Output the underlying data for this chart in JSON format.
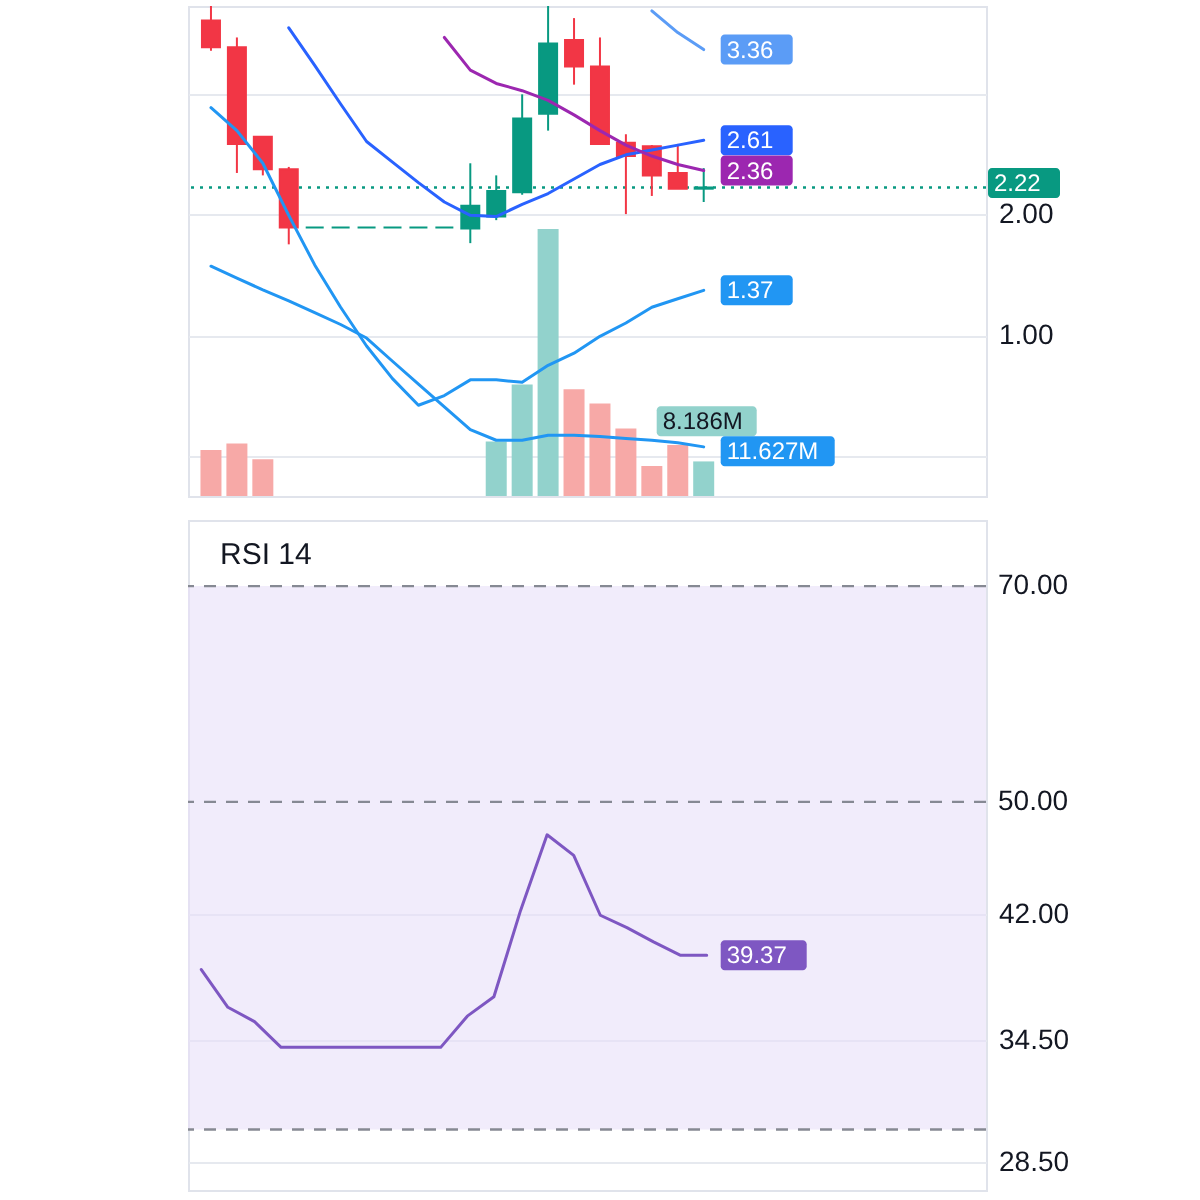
{
  "chart_data": [
    {
      "type": "candlestick",
      "categories": [
        null,
        null,
        null,
        null,
        null,
        null,
        null,
        null,
        null,
        null,
        null,
        null,
        null,
        null,
        null,
        null,
        null,
        null,
        null,
        null,
        null,
        null,
        null,
        null,
        null,
        null,
        null,
        null,
        null,
        null
      ],
      "ohlc": [
        [
          3.6,
          3.72,
          3.35,
          3.38
        ],
        [
          3.38,
          3.46,
          2.34,
          2.58
        ],
        [
          2.64,
          2.64,
          2.32,
          2.37
        ],
        [
          2.37,
          2.39,
          1.75,
          1.89
        ],
        [
          1.89,
          1.89,
          1.89,
          1.89
        ],
        [
          1.89,
          1.89,
          1.89,
          1.89
        ],
        [
          1.89,
          1.89,
          1.89,
          1.89
        ],
        [
          1.89,
          1.89,
          1.89,
          1.89
        ],
        [
          1.89,
          1.89,
          1.89,
          1.89
        ],
        [
          1.89,
          1.89,
          1.89,
          1.89
        ],
        [
          1.88,
          2.42,
          1.76,
          2.07
        ],
        [
          1.98,
          2.32,
          1.95,
          2.19
        ],
        [
          2.18,
          2.99,
          2.16,
          2.79
        ],
        [
          2.83,
          3.72,
          2.69,
          3.41
        ],
        [
          3.44,
          3.62,
          3.07,
          3.22
        ],
        [
          3.22,
          3.46,
          2.58,
          2.58
        ],
        [
          2.59,
          2.66,
          2.0,
          2.48
        ],
        [
          2.56,
          2.57,
          2.15,
          2.32
        ],
        [
          2.34,
          2.58,
          2.21,
          2.21
        ],
        [
          2.21,
          2.38,
          2.1,
          2.22
        ],
        null,
        null,
        null,
        null,
        null,
        null,
        null,
        null,
        null,
        null
      ],
      "colors": [
        "#f23645",
        "#f23645",
        "#f23645",
        "#f23645",
        "#089981",
        "#089981",
        "#089981",
        "#089981",
        "#089981",
        "#089981",
        "#089981",
        "#089981",
        "#089981",
        "#089981",
        "#f23645",
        "#f23645",
        "#f23645",
        "#f23645",
        "#f23645",
        "#089981",
        null,
        null,
        null,
        null,
        null,
        null,
        null,
        null,
        null,
        null
      ],
      "series": [
        {
          "type": "bar",
          "axis": "y2",
          "values": [
            10.9,
            12.4,
            8.7,
            null,
            null,
            null,
            null,
            null,
            null,
            null,
            null,
            12.9,
            26.4,
            63.2,
            25.3,
            21.9,
            16.0,
            7.1,
            12.1,
            8.186,
            null,
            null,
            null,
            null,
            null,
            null,
            null,
            null,
            null,
            null
          ],
          "colors": [
            "#f7a9a7",
            "#f7a9a7",
            "#f7a9a7",
            null,
            null,
            null,
            null,
            null,
            null,
            null,
            null,
            "#92d2cc",
            "#92d2cc",
            "#92d2cc",
            "#f7a9a7",
            "#f7a9a7",
            "#f7a9a7",
            "#f7a9a7",
            "#f7a9a7",
            "#92d2cc",
            null,
            null,
            null,
            null,
            null,
            null,
            null,
            null,
            null,
            null
          ],
          "value_labels": [
            null,
            null,
            null,
            null,
            null,
            null,
            null,
            null,
            null,
            null,
            null,
            null,
            null,
            null,
            null,
            null,
            null,
            null,
            null,
            "8.186M",
            null,
            null,
            null,
            null,
            null,
            null,
            null,
            null,
            null,
            null
          ]
        },
        {
          "type": "line",
          "axis": "y2",
          "color": "#2196f3",
          "values": [
            54.4,
            51.6,
            48.8,
            46.2,
            43.4,
            40.6,
            37.4,
            31.9,
            26.5,
            21.1,
            15.7,
            13.2,
            13.2,
            14.4,
            14.4,
            14.1,
            13.6,
            13.2,
            12.6,
            11.627,
            null,
            null,
            null,
            null,
            null,
            null,
            null,
            null,
            null,
            null
          ],
          "value_labels": [
            null,
            null,
            null,
            null,
            null,
            null,
            null,
            null,
            null,
            null,
            null,
            null,
            null,
            null,
            null,
            null,
            null,
            null,
            null,
            "11.627M",
            null,
            null,
            null,
            null,
            null,
            null,
            null,
            null,
            null,
            null
          ]
        },
        {
          "type": "line",
          "color": "#5b9cf6",
          "values": [
            null,
            null,
            null,
            null,
            null,
            null,
            null,
            null,
            null,
            null,
            null,
            null,
            null,
            null,
            null,
            null,
            null,
            3.68,
            3.5,
            3.36,
            null,
            null,
            null,
            null,
            null,
            null,
            null,
            null,
            null,
            null
          ],
          "value_labels": [
            null,
            null,
            null,
            null,
            null,
            null,
            null,
            null,
            null,
            null,
            null,
            null,
            null,
            null,
            null,
            null,
            null,
            null,
            null,
            "3.36",
            null,
            null,
            null,
            null,
            null,
            null,
            null,
            null,
            null,
            null
          ]
        },
        {
          "type": "line",
          "color": "#2962ff",
          "values": [
            null,
            null,
            null,
            3.54,
            3.23,
            2.91,
            2.6,
            2.43,
            2.26,
            2.1,
            1.99,
            1.98,
            2.08,
            2.17,
            2.29,
            2.41,
            2.49,
            2.53,
            2.57,
            2.61,
            null,
            null,
            null,
            null,
            null,
            null,
            null,
            null,
            null,
            null
          ],
          "value_labels": [
            null,
            null,
            null,
            null,
            null,
            null,
            null,
            null,
            null,
            null,
            null,
            null,
            null,
            null,
            null,
            null,
            null,
            null,
            null,
            "2.61",
            null,
            null,
            null,
            null,
            null,
            null,
            null,
            null,
            null,
            null
          ]
        },
        {
          "type": "line",
          "color": "#9c27b0",
          "values": [
            null,
            null,
            null,
            null,
            null,
            null,
            null,
            null,
            null,
            3.46,
            3.19,
            3.08,
            3.02,
            2.94,
            2.82,
            2.69,
            2.57,
            2.48,
            2.41,
            2.36,
            null,
            null,
            null,
            null,
            null,
            null,
            null,
            null,
            null,
            null
          ],
          "value_labels": [
            null,
            null,
            null,
            null,
            null,
            null,
            null,
            null,
            null,
            null,
            null,
            null,
            null,
            null,
            null,
            null,
            null,
            null,
            null,
            "2.36",
            null,
            null,
            null,
            null,
            null,
            null,
            null,
            null,
            null,
            null
          ]
        },
        {
          "type": "line",
          "color": "#2196f3",
          "values": [
            2.88,
            2.69,
            2.42,
            1.99,
            1.58,
            1.23,
            0.91,
            0.64,
            0.42,
            0.5,
            0.63,
            0.63,
            0.61,
            0.75,
            0.85,
            0.99,
            1.1,
            1.23,
            1.3,
            1.37,
            null,
            null,
            null,
            null,
            null,
            null,
            null,
            null,
            null,
            null
          ],
          "value_labels": [
            null,
            null,
            null,
            null,
            null,
            null,
            null,
            null,
            null,
            null,
            null,
            null,
            null,
            null,
            null,
            null,
            null,
            null,
            null,
            "1.37",
            null,
            null,
            null,
            null,
            null,
            null,
            null,
            null,
            null,
            null
          ]
        }
      ],
      "ylim": [
        -0.33,
        3.72
      ],
      "yticks": [
        {
          "value": 0,
          "label": null
        },
        {
          "value": 1,
          "label": "1.00"
        },
        {
          "value": 2,
          "label": "2.00"
        },
        {
          "value": 3,
          "label": null
        }
      ],
      "y2lim": [
        0,
        116
      ],
      "ref_lines": [
        {
          "axis": "y",
          "value": 2.22,
          "label": "2.22",
          "color": "#089981",
          "line_style": "dotted"
        }
      ],
      "grid": "y",
      "tick_labels": "y"
    },
    {
      "type": "line",
      "title": "RSI 14",
      "categories": [
        null,
        null,
        null,
        null,
        null,
        null,
        null,
        null,
        null,
        null,
        null,
        null,
        null,
        null,
        null,
        null,
        null,
        null,
        null,
        null,
        null,
        null,
        null,
        null,
        null,
        null,
        null,
        null,
        null,
        null
      ],
      "series": [
        {
          "color": "#7e57c2",
          "values": [
            38.5,
            36.3,
            35.5,
            34.1,
            34.1,
            34.1,
            34.1,
            34.1,
            34.1,
            34.1,
            35.8,
            36.9,
            42.2,
            47.5,
            46.0,
            41.9,
            41.1,
            40.2,
            39.37,
            39.37,
            null,
            null,
            null,
            null,
            null,
            null,
            null,
            null,
            null,
            null
          ],
          "value_labels": [
            null,
            null,
            null,
            null,
            null,
            null,
            null,
            null,
            null,
            null,
            null,
            null,
            null,
            null,
            null,
            null,
            null,
            null,
            null,
            "39.37",
            null,
            null,
            null,
            null,
            null,
            null,
            null,
            null,
            null,
            null
          ]
        }
      ],
      "ylim": [
        27.3,
        77.6
      ],
      "yticks": [
        {
          "value": 42,
          "label": "42.00"
        },
        {
          "value": 34.5,
          "label": "34.50"
        },
        {
          "value": 28.5,
          "label": "28.50"
        }
      ],
      "log": true,
      "ref_lines": [
        {
          "axis": "y",
          "value": 70,
          "label": "70.00",
          "color": "#868993",
          "line_style": "dashed"
        },
        {
          "axis": "y",
          "value": 50,
          "label": "50.00",
          "color": "#868993",
          "line_style": "dashed"
        },
        {
          "axis": "y",
          "value": 30,
          "color": "#868993",
          "line_style": "dashed"
        }
      ],
      "bands": [
        {
          "axis": "y",
          "from": 30,
          "to": 70,
          "color": "#f1ecfb"
        }
      ],
      "grid": "y",
      "tick_labels": "y"
    }
  ]
}
